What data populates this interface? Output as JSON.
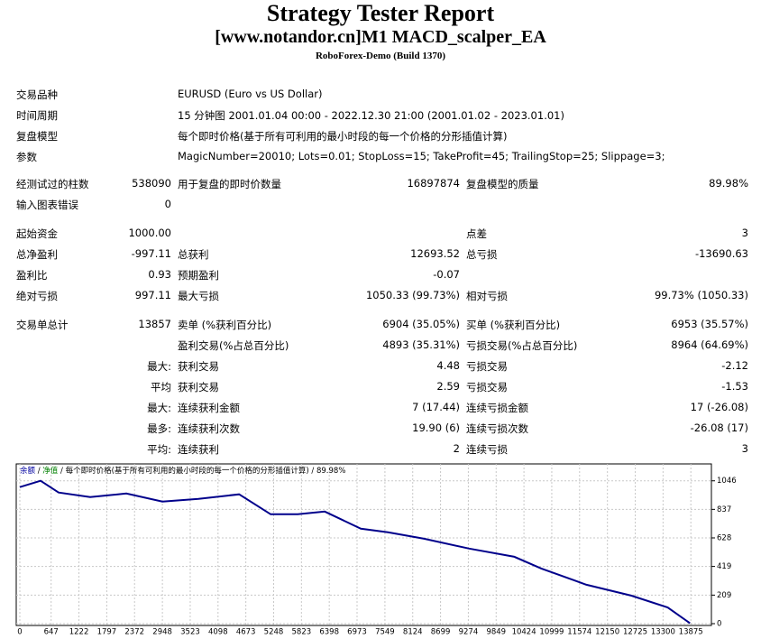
{
  "header": {
    "title": "Strategy Tester Report",
    "subtitle": "[www.notandor.cn]M1 MACD_scalper_EA",
    "broker": "RoboForex-Demo (Build 1370)"
  },
  "summary": [
    [
      "交易品种",
      "EURUSD (Euro vs US Dollar)"
    ],
    [
      "时间周期",
      "15 分钟图 2001.01.04 00:00 - 2022.12.30 21:00 (2001.01.02 - 2023.01.01)"
    ],
    [
      "复盘模型",
      "每个即时价格(基于所有可利用的最小时段的每一个价格的分形插值计算)"
    ],
    [
      "参数",
      "MagicNumber=20010; Lots=0.01; StopLoss=15; TakeProfit=45; TrailingStop=25; Slippage=3;"
    ]
  ],
  "table": {
    "rows": [
      [
        "经测试过的柱数",
        "538090",
        "用于复盘的即时价数量",
        "16897874",
        "复盘模型的质量",
        "89.98%"
      ],
      [
        "输入图表错误",
        "0"
      ],
      [
        "起始资金",
        "1000.00",
        "点差",
        "3"
      ],
      [
        "总净盈利",
        "-997.11",
        "总获利",
        "12693.52",
        "总亏损",
        "-13690.63"
      ],
      [
        "盈利比",
        "0.93",
        "预期盈利",
        "-0.07"
      ],
      [
        "绝对亏损",
        "997.11",
        "最大亏损",
        "1050.33 (99.73%)",
        "相对亏损",
        "99.73% (1050.33)"
      ],
      [
        "交易单总计",
        "13857",
        "卖单 (%获利百分比)",
        "6904 (35.05%)",
        "买单 (%获利百分比)",
        "6953 (35.57%)"
      ],
      [
        "盈利交易(%占总百分比)",
        "4893 (35.31%)",
        "亏损交易(%占总百分比)",
        "8964 (64.69%)"
      ],
      [
        "最大:",
        "获利交易",
        "4.48",
        "亏损交易",
        "-2.12"
      ],
      [
        "平均",
        "获利交易",
        "2.59",
        "亏损交易",
        "-1.53"
      ],
      [
        "最大:",
        "连续获利金额",
        "7 (17.44)",
        "连续亏损金额",
        "17 (-26.08)"
      ],
      [
        "最多:",
        "连续获利次数",
        "19.90 (6)",
        "连续亏损次数",
        "-26.08 (17)"
      ],
      [
        "平均:",
        "连续获利",
        "2",
        "连续亏损",
        "3"
      ]
    ]
  },
  "chart_data": {
    "type": "line",
    "legend": [
      "余额",
      "/",
      "净值",
      "/ 每个即时价格(基于所有可利用的最小时段的每一个价格的分形插值计算) / 89.98%"
    ],
    "legend_colors": [
      "#0000a0",
      "#000000",
      "#008000",
      "#000000"
    ],
    "x": [
      0,
      429,
      802,
      1455,
      2201,
      2948,
      3694,
      4534,
      5187,
      5746,
      6306,
      7052,
      7612,
      8358,
      9291,
      10224,
      10784,
      11716,
      12649,
      13396,
      13857
    ],
    "series": [
      {
        "name": "余额",
        "color": "#00008b",
        "values": [
          1000,
          1046,
          960,
          927,
          953,
          894,
          914,
          947,
          801,
          801,
          821,
          695,
          669,
          622,
          550,
          490,
          404,
          285,
          205,
          119,
          3
        ]
      }
    ],
    "xlim": [
      0,
      14300
    ],
    "ylim": [
      0,
      1150
    ],
    "xticks": [
      0,
      647,
      1222,
      1797,
      2372,
      2948,
      3523,
      4098,
      4673,
      5248,
      5823,
      6398,
      6973,
      7549,
      8124,
      8699,
      9274,
      9849,
      10424,
      10999,
      11574,
      12150,
      12725,
      13300,
      13875
    ],
    "yticks": [
      0,
      209,
      419,
      628,
      837,
      1046
    ],
    "grid": true
  }
}
